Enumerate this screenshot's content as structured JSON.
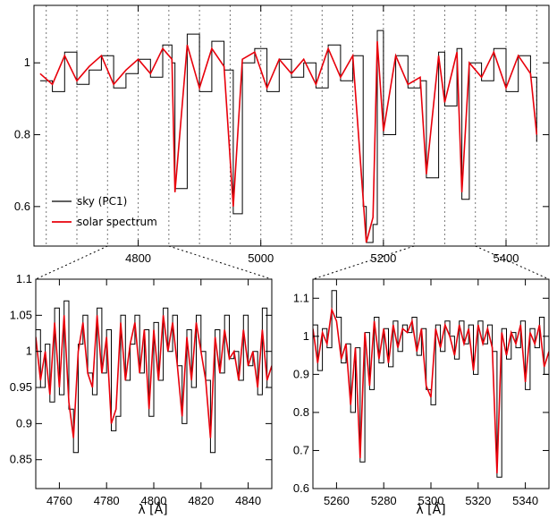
{
  "colors": {
    "sky": "#000000",
    "solar": "#e8000b",
    "grid": "#777777"
  },
  "chart_data": [
    {
      "id": "top",
      "type": "line",
      "xlim": [
        4630,
        5470
      ],
      "ylim": [
        0.49,
        1.16
      ],
      "yticks": [
        0.6,
        0.8,
        1.0
      ],
      "ytick_labels": [
        "0.6",
        "0.8",
        "1"
      ],
      "xticks": [
        4800,
        5000,
        5200,
        5400
      ],
      "xtick_labels": [
        "4800",
        "5000",
        "5200",
        "5400"
      ],
      "xlabel": "",
      "vertical_dotted_lines": [
        4650,
        4700,
        4750,
        4800,
        4850,
        4900,
        4950,
        5000,
        5050,
        5100,
        5150,
        5200,
        5250,
        5300,
        5350,
        5400,
        5450
      ],
      "legend": {
        "position": "lower-left",
        "entries": [
          {
            "label": "sky (PC1)",
            "color": "#000000"
          },
          {
            "label": "solar spectrum",
            "color": "#e8000b"
          }
        ]
      },
      "series": [
        {
          "name": "sky (PC1)",
          "color": "#000000",
          "x": [
            4640,
            4660,
            4680,
            4700,
            4720,
            4740,
            4760,
            4780,
            4800,
            4820,
            4840,
            4855,
            4860,
            4880,
            4900,
            4920,
            4940,
            4955,
            4970,
            4990,
            5010,
            5030,
            5050,
            5070,
            5090,
            5110,
            5130,
            5150,
            5167,
            5172,
            5183,
            5190,
            5200,
            5220,
            5240,
            5260,
            5270,
            5290,
            5300,
            5320,
            5328,
            5340,
            5360,
            5380,
            5400,
            5420,
            5440,
            5450
          ],
          "y": [
            0.95,
            0.92,
            1.03,
            0.94,
            0.98,
            1.02,
            0.93,
            0.97,
            1.01,
            0.96,
            1.05,
            1.0,
            0.65,
            1.08,
            0.92,
            1.06,
            0.98,
            0.58,
            1.0,
            1.04,
            0.92,
            1.01,
            0.96,
            1.0,
            0.93,
            1.05,
            0.95,
            1.02,
            0.6,
            0.5,
            0.55,
            1.09,
            0.8,
            1.02,
            0.93,
            0.95,
            0.68,
            1.03,
            0.88,
            1.04,
            0.62,
            1.0,
            0.95,
            1.04,
            0.92,
            1.02,
            0.96,
            0.78
          ]
        },
        {
          "name": "solar spectrum",
          "color": "#e8000b",
          "x": [
            4640,
            4660,
            4680,
            4700,
            4720,
            4740,
            4760,
            4780,
            4800,
            4820,
            4840,
            4855,
            4860,
            4880,
            4900,
            4920,
            4940,
            4955,
            4970,
            4990,
            5010,
            5030,
            5050,
            5070,
            5090,
            5110,
            5130,
            5150,
            5167,
            5172,
            5183,
            5190,
            5200,
            5220,
            5240,
            5260,
            5270,
            5290,
            5300,
            5320,
            5328,
            5340,
            5360,
            5380,
            5400,
            5420,
            5440,
            5450
          ],
          "y": [
            0.97,
            0.94,
            1.02,
            0.95,
            0.99,
            1.02,
            0.94,
            0.98,
            1.01,
            0.97,
            1.04,
            1.01,
            0.64,
            1.05,
            0.93,
            1.04,
            0.99,
            0.6,
            1.01,
            1.03,
            0.93,
            1.01,
            0.97,
            1.01,
            0.94,
            1.04,
            0.96,
            1.02,
            0.62,
            0.5,
            0.57,
            1.06,
            0.81,
            1.02,
            0.94,
            0.96,
            0.69,
            1.02,
            0.89,
            1.03,
            0.64,
            1.0,
            0.96,
            1.03,
            0.93,
            1.02,
            0.97,
            0.8
          ]
        }
      ]
    },
    {
      "id": "bottom-left",
      "type": "line",
      "xlim": [
        4750,
        4850
      ],
      "ylim": [
        0.81,
        1.1
      ],
      "yticks": [
        0.85,
        0.9,
        0.95,
        1.0,
        1.05,
        1.1
      ],
      "ytick_labels": [
        "0.85",
        "0.9",
        "0.95",
        "1",
        "1.05",
        "1.1"
      ],
      "xticks": [
        4760,
        4780,
        4800,
        4820,
        4840
      ],
      "xtick_labels": [
        "4760",
        "4780",
        "4800",
        "4820",
        "4840"
      ],
      "xlabel": "λ [Å]",
      "series": [
        {
          "name": "sky (PC1)",
          "color": "#000000",
          "x": [
            4750,
            4752,
            4754,
            4756,
            4758,
            4760,
            4762,
            4764,
            4766,
            4768,
            4770,
            4772,
            4774,
            4776,
            4778,
            4780,
            4782,
            4784,
            4786,
            4788,
            4790,
            4792,
            4794,
            4796,
            4798,
            4800,
            4802,
            4804,
            4806,
            4808,
            4810,
            4812,
            4814,
            4816,
            4818,
            4820,
            4822,
            4824,
            4826,
            4828,
            4830,
            4832,
            4834,
            4836,
            4838,
            4840,
            4842,
            4844,
            4846,
            4848,
            4850
          ],
          "y": [
            1.03,
            0.95,
            1.01,
            0.93,
            1.06,
            0.94,
            1.07,
            0.92,
            0.86,
            1.01,
            1.05,
            0.97,
            0.94,
            1.06,
            0.97,
            1.03,
            0.89,
            0.91,
            1.05,
            0.96,
            1.01,
            1.05,
            0.97,
            1.03,
            0.91,
            1.04,
            0.96,
            1.06,
            1.0,
            1.05,
            0.98,
            0.9,
            1.03,
            0.95,
            1.05,
            1.0,
            0.96,
            0.86,
            1.03,
            0.97,
            1.05,
            0.99,
            1.0,
            0.96,
            1.05,
            0.98,
            1.0,
            0.94,
            1.06,
            0.95,
            0.97
          ]
        },
        {
          "name": "solar spectrum",
          "color": "#e8000b",
          "x": [
            4750,
            4752,
            4754,
            4756,
            4758,
            4760,
            4762,
            4764,
            4766,
            4768,
            4770,
            4772,
            4774,
            4776,
            4778,
            4780,
            4782,
            4784,
            4786,
            4788,
            4790,
            4792,
            4794,
            4796,
            4798,
            4800,
            4802,
            4804,
            4806,
            4808,
            4810,
            4812,
            4814,
            4816,
            4818,
            4820,
            4822,
            4824,
            4826,
            4828,
            4830,
            4832,
            4834,
            4836,
            4838,
            4840,
            4842,
            4844,
            4846,
            4848,
            4850
          ],
          "y": [
            1.02,
            0.96,
            1.0,
            0.94,
            1.04,
            0.95,
            1.05,
            0.93,
            0.88,
            1.0,
            1.04,
            0.97,
            0.95,
            1.05,
            0.97,
            1.02,
            0.9,
            0.92,
            1.04,
            0.96,
            1.01,
            1.04,
            0.97,
            1.03,
            0.92,
            1.03,
            0.96,
            1.05,
            1.0,
            1.04,
            0.98,
            0.91,
            1.02,
            0.96,
            1.04,
            1.0,
            0.96,
            0.88,
            1.02,
            0.97,
            1.03,
            0.99,
            1.0,
            0.96,
            1.03,
            0.98,
            1.0,
            0.95,
            1.03,
            0.96,
            0.98
          ]
        }
      ]
    },
    {
      "id": "bottom-right",
      "type": "line",
      "xlim": [
        5250,
        5350
      ],
      "ylim": [
        0.6,
        1.15
      ],
      "yticks": [
        0.6,
        0.7,
        0.8,
        0.9,
        1.0,
        1.1
      ],
      "ytick_labels": [
        "0.6",
        "0.7",
        "0.8",
        "0.9",
        "1",
        "1.1"
      ],
      "xticks": [
        5260,
        5280,
        5300,
        5320,
        5340
      ],
      "xtick_labels": [
        "5260",
        "5280",
        "5300",
        "5320",
        "5340"
      ],
      "xlabel": "λ [Å]",
      "series": [
        {
          "name": "sky (PC1)",
          "color": "#000000",
          "x": [
            5250,
            5252,
            5254,
            5256,
            5258,
            5260,
            5262,
            5264,
            5266,
            5268,
            5270,
            5272,
            5274,
            5276,
            5278,
            5280,
            5282,
            5284,
            5286,
            5288,
            5290,
            5292,
            5294,
            5296,
            5298,
            5300,
            5302,
            5304,
            5306,
            5308,
            5310,
            5312,
            5314,
            5316,
            5318,
            5320,
            5322,
            5324,
            5326,
            5328,
            5330,
            5332,
            5334,
            5336,
            5338,
            5340,
            5342,
            5344,
            5346,
            5348,
            5350
          ],
          "y": [
            1.03,
            0.91,
            1.02,
            0.97,
            1.12,
            1.05,
            0.93,
            0.98,
            0.8,
            0.97,
            0.67,
            1.01,
            0.86,
            1.05,
            0.93,
            1.02,
            0.92,
            1.04,
            0.96,
            1.03,
            1.01,
            1.05,
            0.95,
            1.02,
            0.86,
            0.82,
            1.03,
            0.96,
            1.04,
            1.0,
            0.94,
            1.04,
            0.98,
            1.03,
            0.9,
            1.04,
            0.98,
            1.03,
            0.96,
            0.63,
            1.02,
            0.94,
            1.01,
            0.97,
            1.04,
            0.86,
            1.02,
            0.97,
            1.05,
            0.9,
            0.95
          ]
        },
        {
          "name": "solar spectrum",
          "color": "#e8000b",
          "x": [
            5250,
            5252,
            5254,
            5256,
            5258,
            5260,
            5262,
            5264,
            5266,
            5268,
            5270,
            5272,
            5274,
            5276,
            5278,
            5280,
            5282,
            5284,
            5286,
            5288,
            5290,
            5292,
            5294,
            5296,
            5298,
            5300,
            5302,
            5304,
            5306,
            5308,
            5310,
            5312,
            5314,
            5316,
            5318,
            5320,
            5322,
            5324,
            5326,
            5328,
            5330,
            5332,
            5334,
            5336,
            5338,
            5340,
            5342,
            5344,
            5346,
            5348,
            5350
          ],
          "y": [
            1.02,
            0.93,
            1.01,
            0.98,
            1.07,
            1.04,
            0.94,
            0.98,
            0.82,
            0.97,
            0.68,
            1.01,
            0.87,
            1.04,
            0.94,
            1.02,
            0.93,
            1.03,
            0.97,
            1.02,
            1.01,
            1.04,
            0.96,
            1.02,
            0.87,
            0.84,
            1.02,
            0.97,
            1.03,
            1.0,
            0.95,
            1.03,
            0.98,
            1.02,
            0.91,
            1.03,
            0.98,
            1.02,
            0.97,
            0.64,
            1.01,
            0.95,
            1.01,
            0.98,
            1.03,
            0.88,
            1.01,
            0.98,
            1.03,
            0.92,
            0.96
          ]
        }
      ]
    }
  ]
}
